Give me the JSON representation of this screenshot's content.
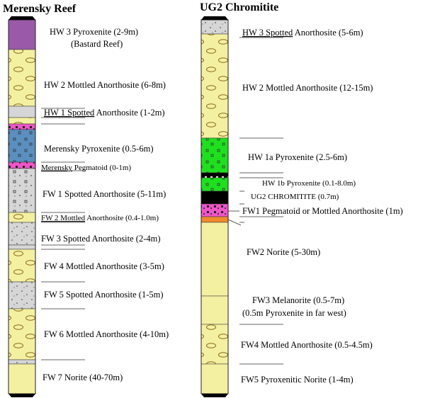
{
  "titles": {
    "merensky": "Merensky Reef",
    "ug2": "UG2 Chromitite"
  },
  "colors": {
    "yellow": "#f4f0a2",
    "purple": "#9b5aa9",
    "blue": "#5a8fc0",
    "gray": "#d6d6d6",
    "magenta": "#ef55c8",
    "green": "#1fe01f",
    "black": "#000000",
    "orange": "#f08a2c",
    "ovalStroke": "#8a6a1a"
  },
  "merensky_labels": [
    {
      "text": "HW 3 Pyroxenite (2-9m)",
      "underline_part": ""
    },
    {
      "text": "(Bastard Reef)",
      "underline_part": ""
    },
    {
      "text": "HW 2 Mottled Anorthosite (6-8m)",
      "underline_part": ""
    },
    {
      "text": "HW 1 Spotted Anorthosite (1-2m)",
      "underline_part": "HW 1 Spotted"
    },
    {
      "text": "Merensky Pyroxenite (0.5-6m)",
      "underline_part": ""
    },
    {
      "text": "Merensky Pegmatoid (0-1m)",
      "underline_part": "Merensky"
    },
    {
      "text": "FW 1 Spotted Anorthosite (5-11m)",
      "underline_part": ""
    },
    {
      "text": "FW 2 Mottled Anorthosite (0.4-1.0m)",
      "underline_part": "FW 2 Mottled"
    },
    {
      "text": "FW 3 Spotted Anorthosite (2-4m)",
      "underline_part": ""
    },
    {
      "text": "FW 4 Mottled Anorthosite (3-5m)",
      "underline_part": ""
    },
    {
      "text": "FW 5 Spotted Anorthosite (1-5m)",
      "underline_part": ""
    },
    {
      "text": "FW 6 Mottled Anorthosite (4-10m)",
      "underline_part": ""
    },
    {
      "text": "FW 7 Norite (40-70m)",
      "underline_part": ""
    }
  ],
  "ug2_labels": [
    {
      "text": "HW 3 Spotted Anorthosite (5-6m)",
      "underline_part": "HW 3 Spotted"
    },
    {
      "text": "HW 2 Mottled Anorthosite (12-15m)",
      "underline_part": ""
    },
    {
      "text": "HW 1a Pyroxenite (2.5-6m)",
      "underline_part": ""
    },
    {
      "text": "HW 1b Pyroxenite (0.1-8.0m)",
      "underline_part": ""
    },
    {
      "text": "UG2 CHROMITITE (0.7m)",
      "underline_part": ""
    },
    {
      "text": "FW1 Pegmatoid or Mottled Anorthosite (1m)",
      "underline_part": ""
    },
    {
      "text": "FW2 Norite (5-30m)",
      "underline_part": ""
    },
    {
      "text": "FW3 Melanorite (0.5-7m)",
      "underline_part": ""
    },
    {
      "text": "(0.5m Pyroxenite in far west)",
      "underline_part": ""
    },
    {
      "text": "FW4 Mottled Anorthosite (0.5-4.5m)",
      "underline_part": ""
    },
    {
      "text": "FW5 Pyroxenitic Norite (1-4m)",
      "underline_part": ""
    }
  ]
}
